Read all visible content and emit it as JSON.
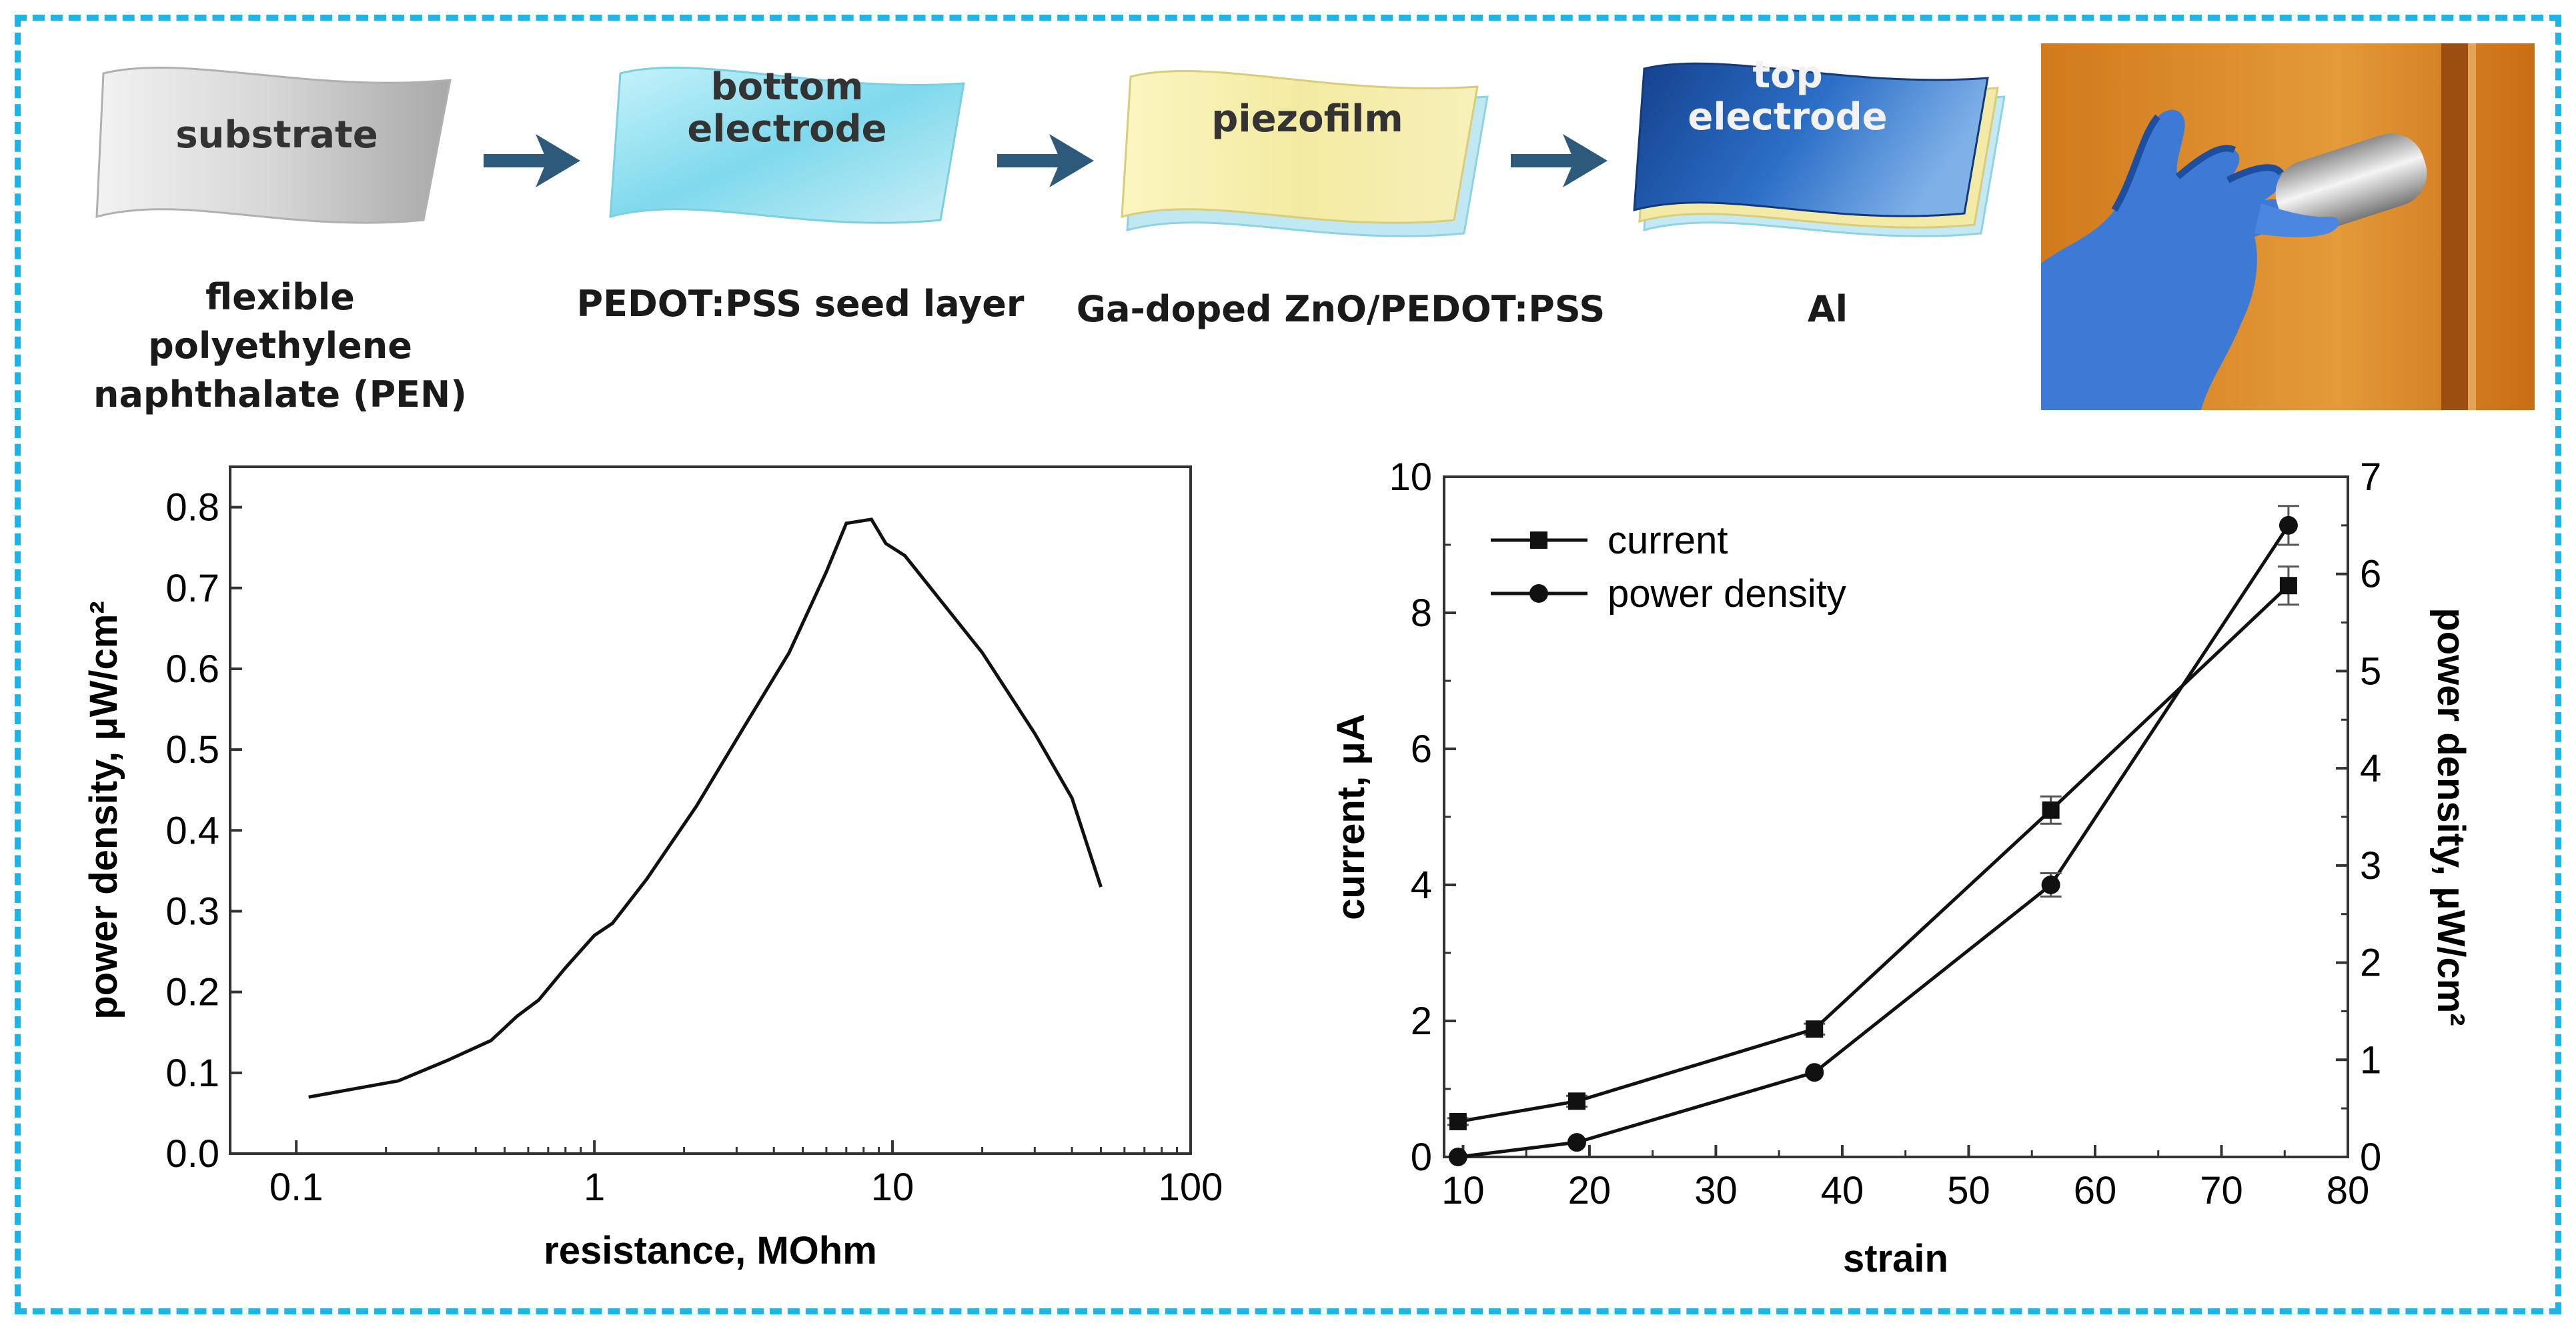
{
  "fabrication": {
    "steps": [
      {
        "layer_label": "substrate",
        "material": "flexible polyethylene\nnaphthalate (PEN)"
      },
      {
        "layer_label": "bottom\nelectrode",
        "material": "PEDOT:PSS seed layer"
      },
      {
        "layer_label": "piezofilm",
        "material": "Ga-doped ZnO/PEDOT:PSS"
      },
      {
        "layer_label": "top\nelectrode",
        "material": "Al"
      }
    ],
    "arrow_color": "#2d5a7b"
  },
  "chart_data": [
    {
      "type": "line",
      "title": "",
      "xlabel": "resistance, MOhm",
      "ylabel": "power density, μW/cm²",
      "xscale": "log",
      "xlim": [
        0.06,
        100
      ],
      "ylim": [
        0.0,
        0.85
      ],
      "xticks": [
        "0.1",
        "1",
        "10",
        "100"
      ],
      "yticks": [
        "0.0",
        "0.1",
        "0.2",
        "0.3",
        "0.4",
        "0.5",
        "0.6",
        "0.7",
        "0.8"
      ],
      "series": [
        {
          "name": "power density",
          "x": [
            0.11,
            0.22,
            0.32,
            0.45,
            0.55,
            0.65,
            0.8,
            1.0,
            1.15,
            1.5,
            2.2,
            3.2,
            4.5,
            6.0,
            7.0,
            8.5,
            9.5,
            11,
            20,
            30,
            40,
            50
          ],
          "y": [
            0.07,
            0.09,
            0.115,
            0.14,
            0.17,
            0.19,
            0.23,
            0.27,
            0.285,
            0.34,
            0.43,
            0.53,
            0.62,
            0.72,
            0.78,
            0.785,
            0.755,
            0.74,
            0.62,
            0.52,
            0.44,
            0.33
          ]
        }
      ]
    },
    {
      "type": "line",
      "title": "",
      "xlabel": "strain",
      "ylabel": "current, μA",
      "ylabel_right": "power density, μW/cm²",
      "xlim": [
        8.5,
        80
      ],
      "ylim": [
        0,
        10
      ],
      "ylim_right": [
        0,
        7
      ],
      "xticks": [
        "10",
        "20",
        "30",
        "40",
        "50",
        "60",
        "70",
        "80"
      ],
      "yticks": [
        "0",
        "2",
        "4",
        "6",
        "8",
        "10"
      ],
      "yticks_right": [
        "0",
        "1",
        "2",
        "3",
        "4",
        "5",
        "6",
        "7"
      ],
      "legend": "top-left",
      "series": [
        {
          "name": "current",
          "marker": "square",
          "axis": "left",
          "x": [
            9.6,
            19,
            37.8,
            56.5,
            75.3
          ],
          "y": [
            0.52,
            0.82,
            1.88,
            5.1,
            8.4
          ],
          "err": [
            0.05,
            0.08,
            0.08,
            0.2,
            0.28
          ]
        },
        {
          "name": "power density",
          "marker": "circle",
          "axis": "right",
          "x": [
            9.6,
            19,
            37.8,
            56.5,
            75.3
          ],
          "y": [
            0.0,
            0.15,
            0.87,
            2.8,
            6.5
          ],
          "err": [
            0,
            0,
            0,
            0.12,
            0.2
          ]
        }
      ]
    }
  ]
}
